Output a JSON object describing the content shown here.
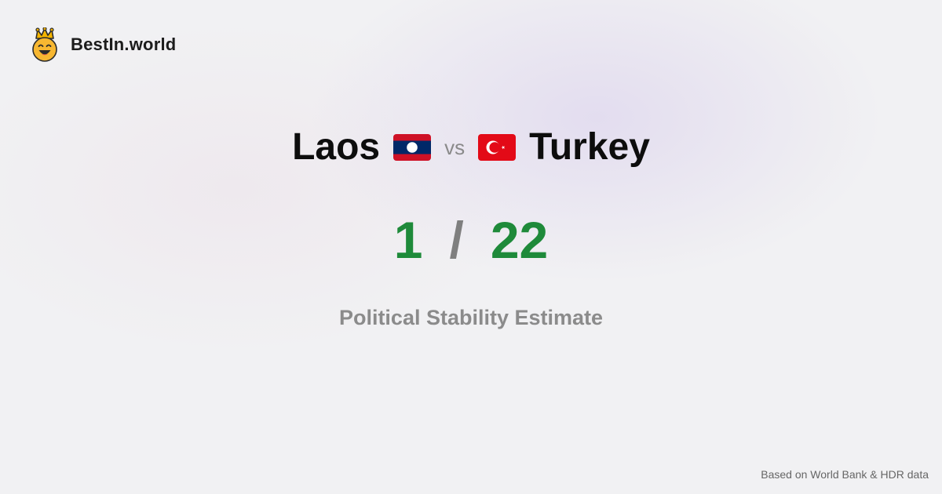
{
  "brand": {
    "name": "BestIn.world",
    "logo_icon": "crowned-smiley-icon"
  },
  "comparison": {
    "left_country": {
      "name": "Laos",
      "flag_icon": "laos-flag-icon"
    },
    "vs_label": "vs",
    "right_country": {
      "name": "Turkey",
      "flag_icon": "turkey-flag-icon"
    }
  },
  "ranks": {
    "left": "1",
    "separator": "/",
    "right": "22"
  },
  "metric": {
    "label": "Political Stability Estimate"
  },
  "footer": {
    "source": "Based on World Bank & HDR data"
  },
  "colors": {
    "rank_green": "#1e8a3a",
    "separator_gray": "#7f7f7f",
    "metric_gray": "#8b8b8b",
    "laos_red": "#ce1126",
    "laos_blue": "#002868",
    "turkey_red": "#e30a17"
  }
}
